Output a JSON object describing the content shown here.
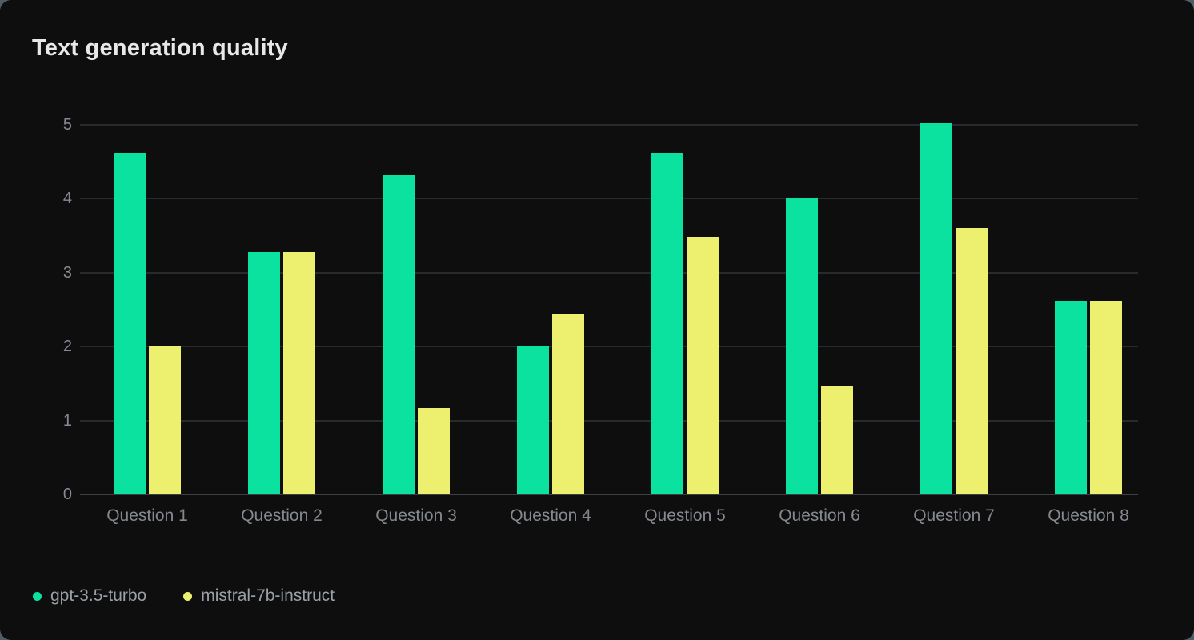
{
  "page": {
    "background_color": "#4d5e66",
    "card_background_color": "#0d0e0d"
  },
  "chart_data": {
    "type": "bar",
    "title": "Text generation quality",
    "categories": [
      "Question 1",
      "Question 2",
      "Question 3",
      "Question 4",
      "Question 5",
      "Question 6",
      "Question 7",
      "Question 8"
    ],
    "series": [
      {
        "name": "gpt-3.5-turbo",
        "color": "#0be2a0",
        "values": [
          4.62,
          3.28,
          4.32,
          2.0,
          4.62,
          4.0,
          5.02,
          2.62
        ]
      },
      {
        "name": "mistral-7b-instruct",
        "color": "#edf06e",
        "values": [
          2.0,
          3.28,
          1.17,
          2.43,
          3.49,
          1.47,
          3.6,
          2.62
        ]
      }
    ],
    "xlabel": "",
    "ylabel": "",
    "ylim": [
      0,
      5
    ],
    "yticks": [
      0,
      1,
      2,
      3,
      4,
      5
    ],
    "grid": "horizontal",
    "legend_position": "bottom-left",
    "colors": {
      "title_text": "#e7e9e8",
      "tick_text": "#868a92",
      "category_text": "#85888f",
      "legend_text": "#9aa0a6",
      "gridline": "#282b2b",
      "axis_line": "#3d4041"
    }
  }
}
